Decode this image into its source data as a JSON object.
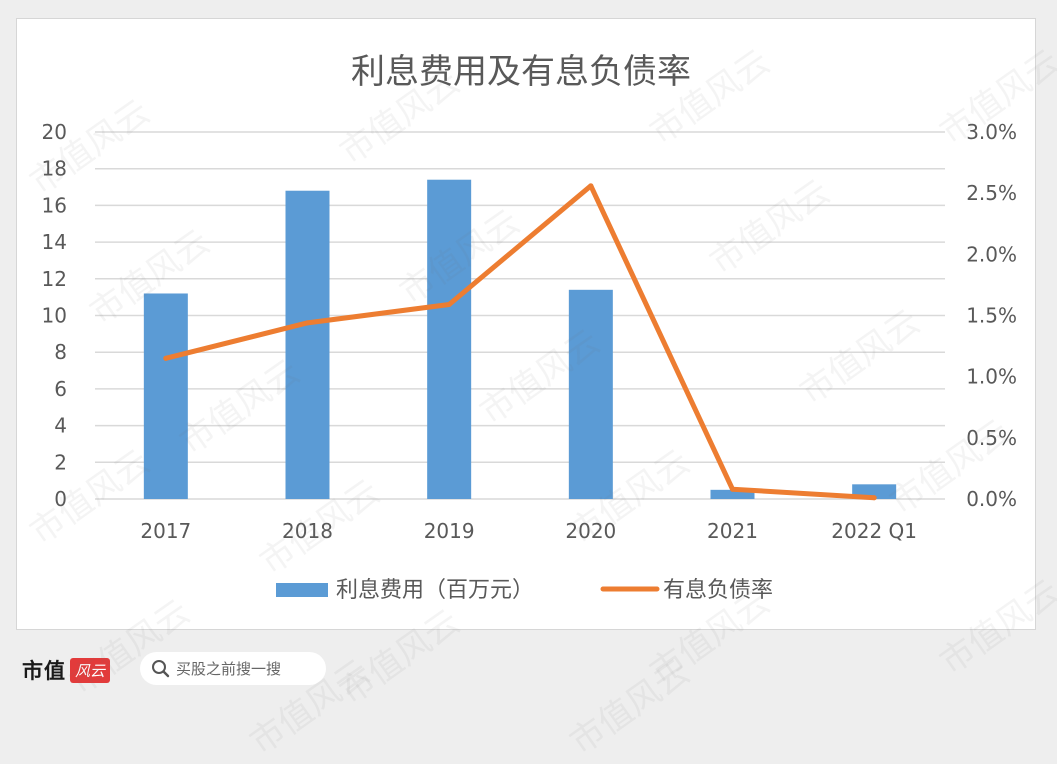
{
  "chart_data": {
    "type": "bar+line",
    "title": "利息费用及有息负债率",
    "categories": [
      "2017",
      "2018",
      "2019",
      "2020",
      "2021",
      "2022 Q1"
    ],
    "series": [
      {
        "name": "利息费用（百万元）",
        "type": "bar",
        "axis": "left",
        "color": "#5b9bd5",
        "values": [
          11.2,
          16.8,
          17.4,
          11.4,
          0.5,
          0.8
        ]
      },
      {
        "name": "有息负债率",
        "type": "line",
        "axis": "right",
        "color": "#ed7d31",
        "values": [
          1.15,
          1.44,
          1.59,
          2.56,
          0.08,
          0.01
        ]
      }
    ],
    "left_axis": {
      "min": 0,
      "max": 20,
      "ticks": [
        "0",
        "2",
        "4",
        "6",
        "8",
        "10",
        "12",
        "14",
        "16",
        "18",
        "20"
      ]
    },
    "right_axis": {
      "min": 0,
      "max": 3.0,
      "unit": "%",
      "ticks": [
        "0.0%",
        "0.5%",
        "1.0%",
        "1.5%",
        "2.0%",
        "2.5%",
        "3.0%"
      ]
    },
    "grid": true,
    "legend_position": "bottom"
  },
  "footer": {
    "brand": "市值",
    "brand_tag": "风云",
    "search_placeholder": "买股之前搜一搜"
  },
  "watermark_text": "市值风云"
}
